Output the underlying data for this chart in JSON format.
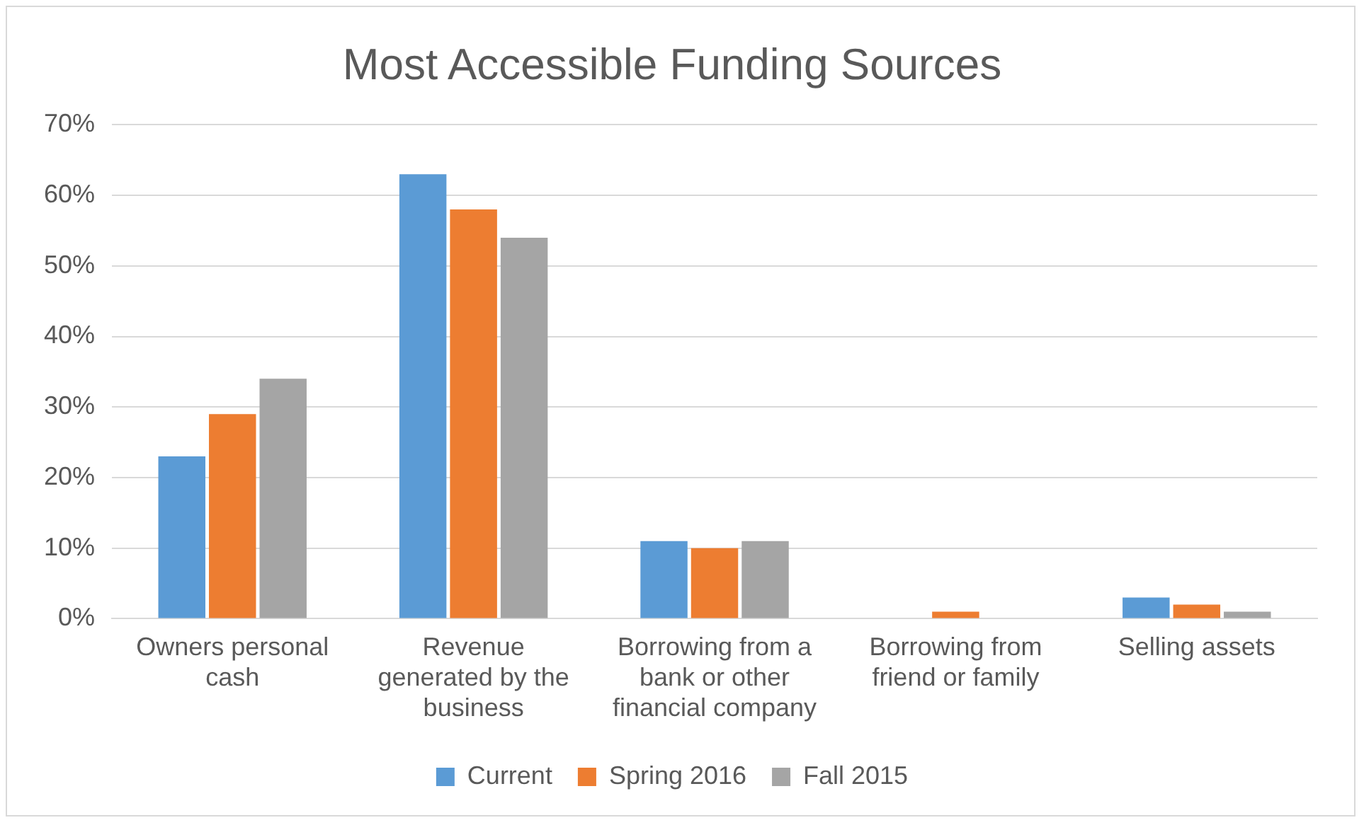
{
  "chart_data": {
    "type": "bar",
    "title": "Most Accessible Funding Sources",
    "categories": [
      "Owners personal cash",
      "Revenue generated by the business",
      "Borrowing from a bank or other financial company",
      "Borrowing from friend or family",
      "Selling assets"
    ],
    "series": [
      {
        "name": "Current",
        "color": "#5b9bd5",
        "values": [
          23,
          63,
          11,
          0,
          3
        ]
      },
      {
        "name": "Spring 2016",
        "color": "#ed7d31",
        "values": [
          29,
          58,
          10,
          1,
          2
        ]
      },
      {
        "name": "Fall 2015",
        "color": "#a5a5a5",
        "values": [
          34,
          54,
          11,
          0,
          1
        ]
      }
    ],
    "ylim": [
      0,
      70
    ],
    "yticks": [
      {
        "value": 0,
        "label": "0%"
      },
      {
        "value": 10,
        "label": "10%"
      },
      {
        "value": 20,
        "label": "20%"
      },
      {
        "value": 30,
        "label": "30%"
      },
      {
        "value": 40,
        "label": "40%"
      },
      {
        "value": 50,
        "label": "50%"
      },
      {
        "value": 60,
        "label": "60%"
      },
      {
        "value": 70,
        "label": "70%"
      }
    ],
    "grid": "y",
    "legend": "bottom"
  }
}
